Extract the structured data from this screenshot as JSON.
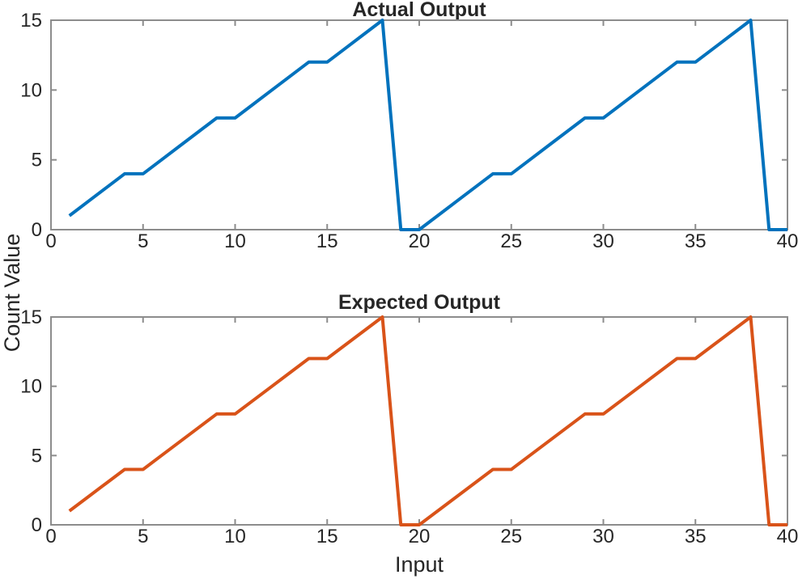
{
  "figure": {
    "xlabel": "Input",
    "ylabel": "Count Value",
    "background": "#ffffff",
    "axis_color": "#8c8c8c",
    "text_color": "#262626"
  },
  "chart_data": [
    {
      "type": "line",
      "title": "Actual Output",
      "line_color": "#0072BD",
      "x": [
        1,
        2,
        3,
        4,
        5,
        6,
        7,
        8,
        9,
        10,
        11,
        12,
        13,
        14,
        15,
        16,
        17,
        18,
        19,
        20,
        21,
        22,
        23,
        24,
        25,
        26,
        27,
        28,
        29,
        30,
        31,
        32,
        33,
        34,
        35,
        36,
        37,
        38,
        39,
        40
      ],
      "y": [
        1,
        2,
        3,
        4,
        4,
        5,
        6,
        7,
        8,
        8,
        9,
        10,
        11,
        12,
        12,
        13,
        14,
        15,
        0,
        0,
        1,
        2,
        3,
        4,
        4,
        5,
        6,
        7,
        8,
        8,
        9,
        10,
        11,
        12,
        12,
        13,
        14,
        15,
        0,
        0
      ],
      "xlim": [
        0,
        40
      ],
      "ylim": [
        0,
        15
      ],
      "xticks": [
        0,
        5,
        10,
        15,
        20,
        25,
        30,
        35,
        40
      ],
      "yticks": [
        0,
        5,
        10,
        15
      ],
      "grid": false,
      "box": true,
      "legend_position": "none"
    },
    {
      "type": "line",
      "title": "Expected Output",
      "line_color": "#D95319",
      "x": [
        1,
        2,
        3,
        4,
        5,
        6,
        7,
        8,
        9,
        10,
        11,
        12,
        13,
        14,
        15,
        16,
        17,
        18,
        19,
        20,
        21,
        22,
        23,
        24,
        25,
        26,
        27,
        28,
        29,
        30,
        31,
        32,
        33,
        34,
        35,
        36,
        37,
        38,
        39,
        40
      ],
      "y": [
        1,
        2,
        3,
        4,
        4,
        5,
        6,
        7,
        8,
        8,
        9,
        10,
        11,
        12,
        12,
        13,
        14,
        15,
        0,
        0,
        1,
        2,
        3,
        4,
        4,
        5,
        6,
        7,
        8,
        8,
        9,
        10,
        11,
        12,
        12,
        13,
        14,
        15,
        0,
        0
      ],
      "xlim": [
        0,
        40
      ],
      "ylim": [
        0,
        15
      ],
      "xticks": [
        0,
        5,
        10,
        15,
        20,
        25,
        30,
        35,
        40
      ],
      "yticks": [
        0,
        5,
        10,
        15
      ],
      "grid": false,
      "box": true,
      "legend_position": "none"
    }
  ]
}
